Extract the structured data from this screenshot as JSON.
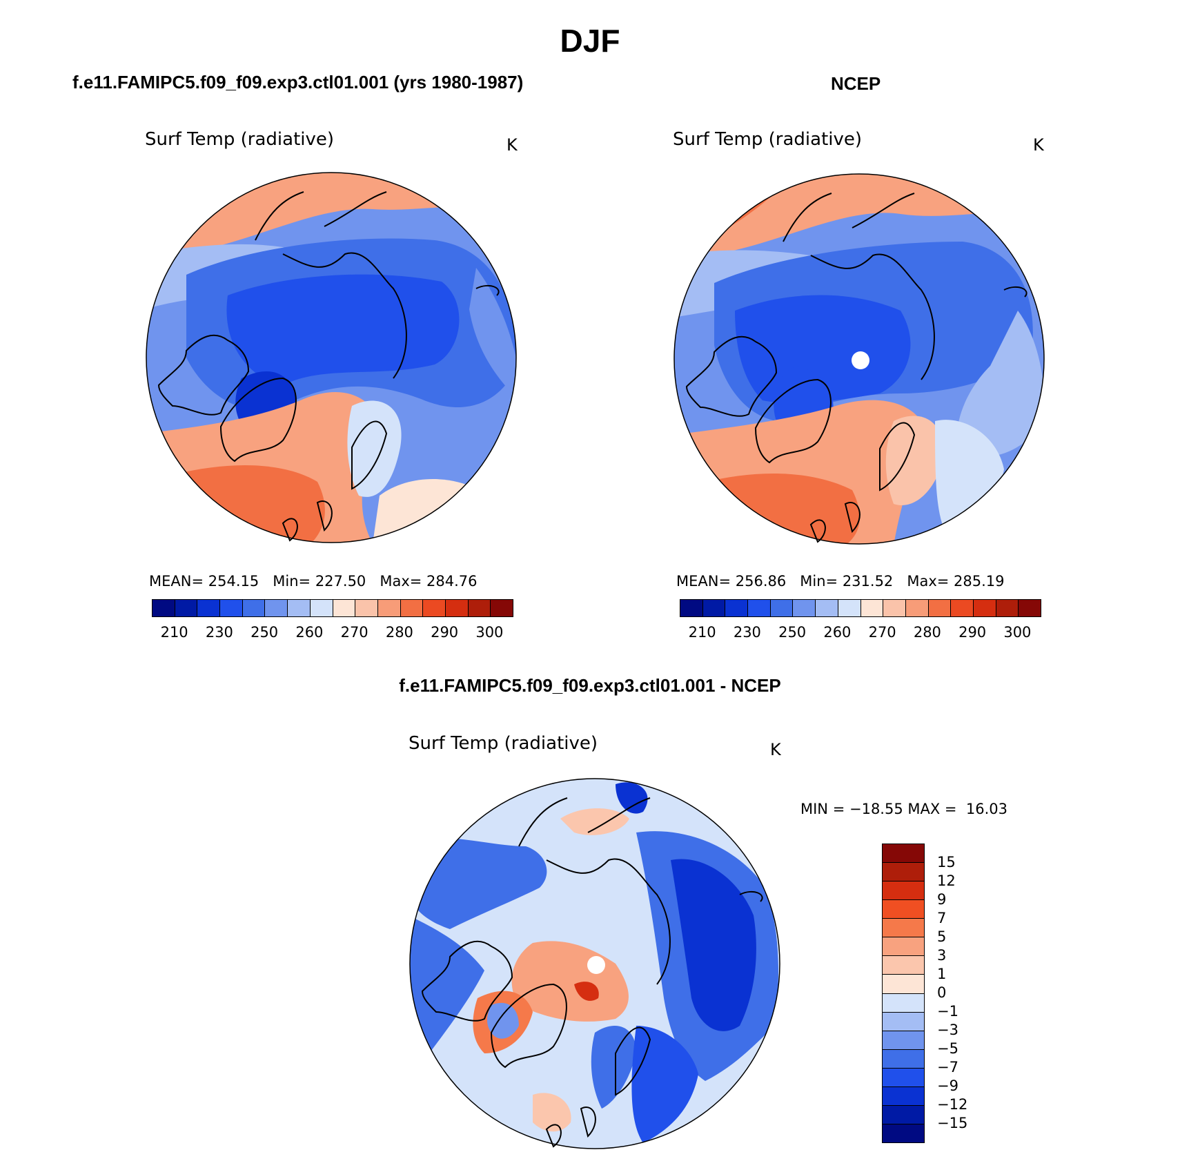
{
  "title": "DJF",
  "panels": [
    {
      "id": "model",
      "header": "f.e11.FAMIPC5.f09_f09.exp3.ctl01.001 (yrs 1980-1987)",
      "variable": "Surf Temp (radiative)",
      "units": "K",
      "stats": {
        "mean_label": "MEAN=",
        "mean": "254.15",
        "min_label": "Min=",
        "min": "227.50",
        "max_label": "Max=",
        "max": "284.76"
      }
    },
    {
      "id": "ncep",
      "header": "NCEP",
      "variable": "Surf Temp (radiative)",
      "units": "K",
      "stats": {
        "mean_label": "MEAN=",
        "mean": "256.86",
        "min_label": "Min=",
        "min": "231.52",
        "max_label": "Max=",
        "max": "285.19"
      }
    },
    {
      "id": "diff",
      "header": "f.e11.FAMIPC5.f09_f09.exp3.ctl01.001 - NCEP",
      "variable": "Surf Temp (radiative)",
      "units": "K",
      "stats": {
        "min_label": "MIN =",
        "min": "−18.55",
        "max_label": "MAX =",
        "max": "16.03"
      }
    }
  ],
  "abs_colorbar": {
    "labels": [
      "210",
      "230",
      "250",
      "260",
      "270",
      "280",
      "290",
      "300"
    ],
    "colors": [
      "#000a82",
      "#001aa5",
      "#0a32d2",
      "#2050eb",
      "#3f6fe8",
      "#7094ee",
      "#a4bdf4",
      "#d4e3fa",
      "#fde5d6",
      "#fac3aa",
      "#f79c78",
      "#f26f43",
      "#eb4a22",
      "#d52e10",
      "#ae1e0a",
      "#850806"
    ]
  },
  "diff_colorbar": {
    "labels": [
      "15",
      "12",
      "9",
      "7",
      "5",
      "3",
      "1",
      "0",
      "−1",
      "−3",
      "−5",
      "−7",
      "−9",
      "−12",
      "−15"
    ],
    "colors": [
      "#850806",
      "#ae1e0a",
      "#d52e10",
      "#f04f22",
      "#f5794a",
      "#f8a27f",
      "#fbc6ad",
      "#fde5d6",
      "#d4e3fa",
      "#a4bdf4",
      "#7094ee",
      "#3f6fe8",
      "#2050eb",
      "#0a32d2",
      "#001aa5",
      "#000a82"
    ]
  }
}
